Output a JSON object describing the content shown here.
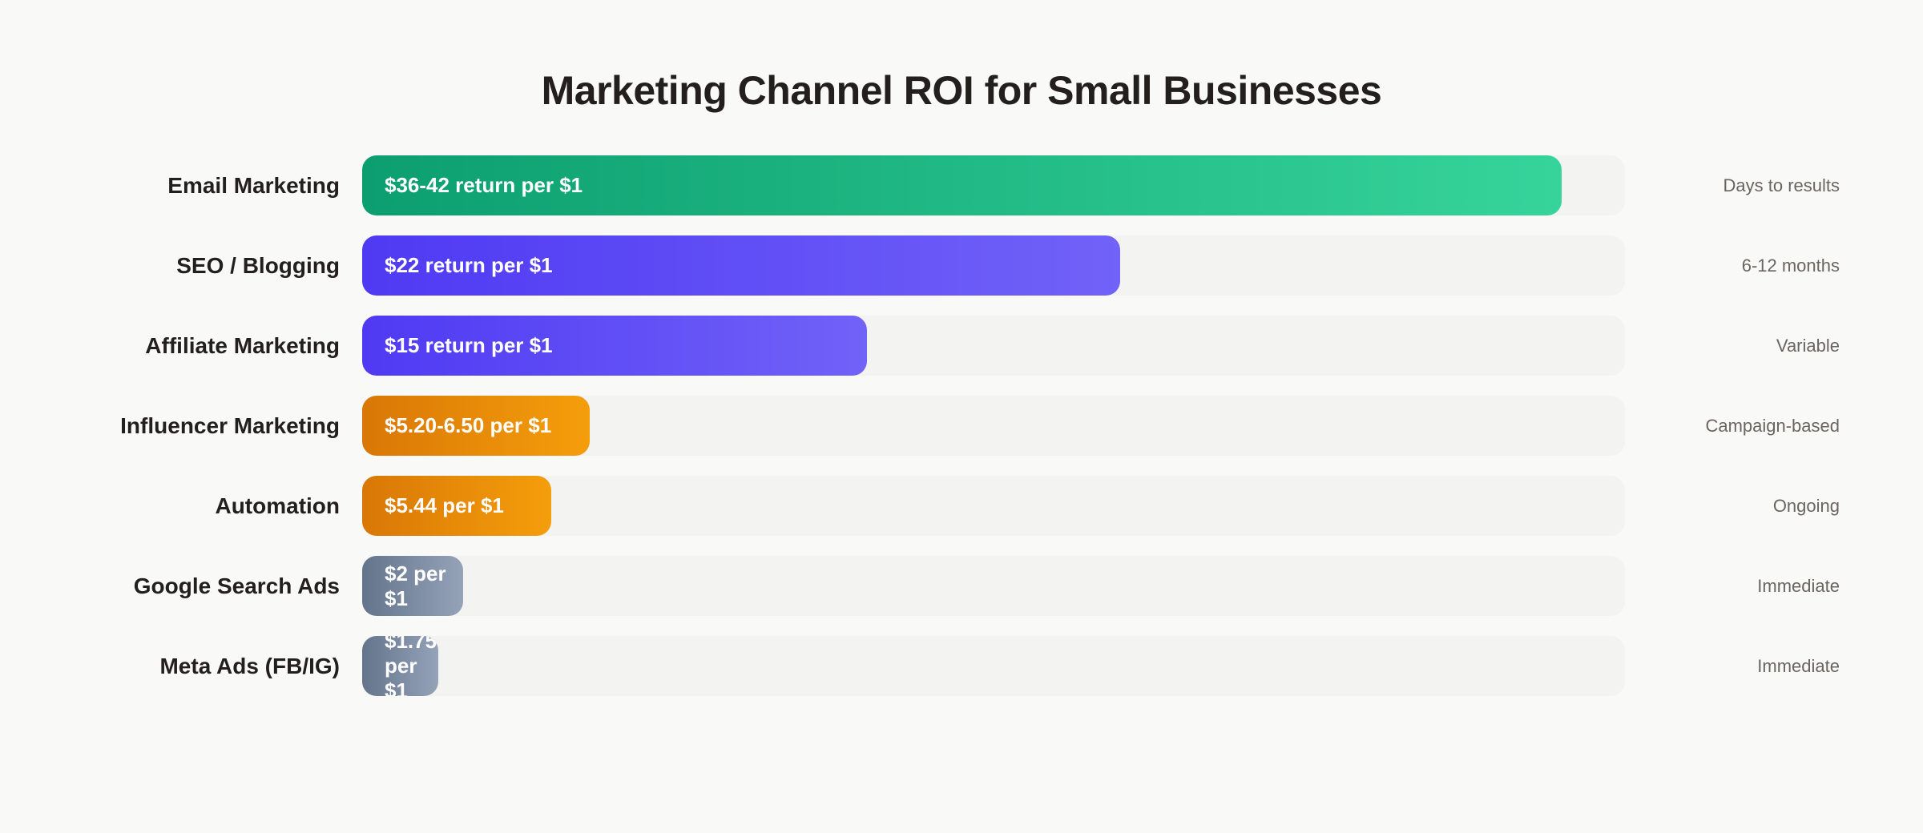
{
  "chart_data": {
    "type": "bar",
    "orientation": "horizontal",
    "title": "Marketing Channel ROI for Small Businesses",
    "categories": [
      "Email Marketing",
      "SEO / Blogging",
      "Affiliate Marketing",
      "Influencer Marketing",
      "Automation",
      "Google Search Ads",
      "Meta Ads (FB/IG)"
    ],
    "fill_percent": [
      95,
      60,
      40,
      18,
      15,
      8,
      6
    ],
    "data_labels": [
      "$36-42 return per $1",
      "$22 return per $1",
      "$15 return per $1",
      "$5.20-6.50 per $1",
      "$5.44 per $1",
      "$2 per $1",
      "$1.75 per $1"
    ],
    "time_to_results": [
      "Days to results",
      "6-12 months",
      "Variable",
      "Campaign-based",
      "Ongoing",
      "Immediate",
      "Immediate"
    ],
    "colors": [
      [
        "#0c9e6f",
        "#36d49b"
      ],
      [
        "#4f3af3",
        "#7162f8"
      ],
      [
        "#4f3af3",
        "#7162f8"
      ],
      [
        "#d97706",
        "#f59e0b"
      ],
      [
        "#d97706",
        "#f59e0b"
      ],
      [
        "#64748b",
        "#94a3b8"
      ],
      [
        "#64748b",
        "#94a3b8"
      ]
    ],
    "grid": false,
    "legend": "none"
  }
}
